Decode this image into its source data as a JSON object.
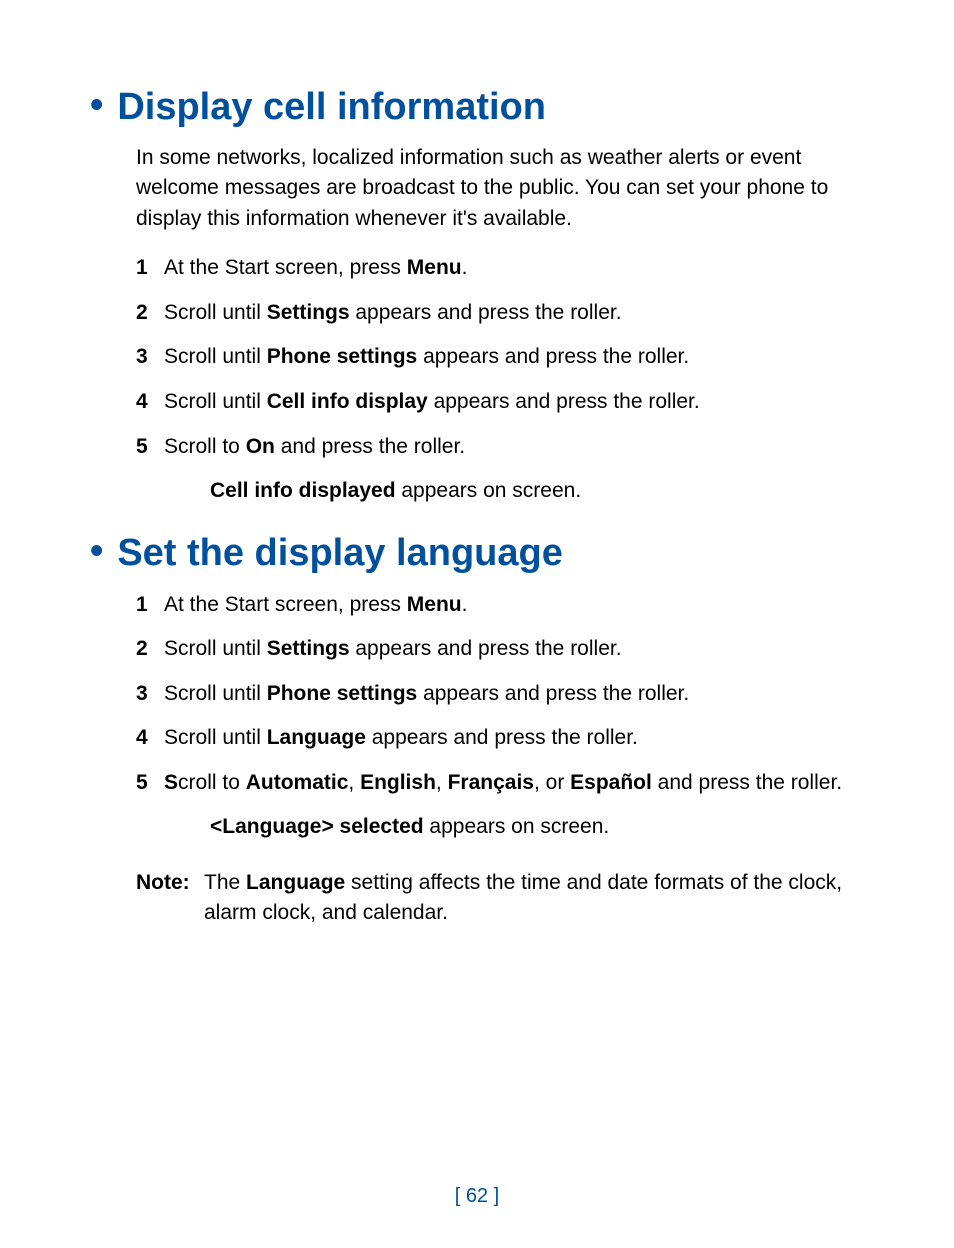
{
  "colors": {
    "heading": "#00509e",
    "body": "#000000",
    "background": "#ffffff"
  },
  "typography": {
    "heading_fontsize": 38,
    "body_fontsize": 21,
    "heading_weight": 700
  },
  "page_number": "[ 62 ]",
  "section1": {
    "title": "Display cell information",
    "intro": "In some networks, localized information such as weather alerts or event welcome messages are broadcast to the public. You can set your phone to display this information whenever it's available.",
    "steps": [
      {
        "num": "1",
        "pre": "At the Start screen, press ",
        "bold": "Menu",
        "post": "."
      },
      {
        "num": "2",
        "pre": "Scroll until ",
        "bold": "Settings",
        "post": " appears and press the roller."
      },
      {
        "num": "3",
        "pre": "Scroll until ",
        "bold": "Phone settings",
        "post": " appears and press the roller."
      },
      {
        "num": "4",
        "pre": "Scroll until ",
        "bold": "Cell info display",
        "post": " appears and press the roller."
      },
      {
        "num": "5",
        "pre": "Scroll to ",
        "bold": "On",
        "post": " and press the roller."
      }
    ],
    "followup_bold": "Cell info displayed",
    "followup_post": " appears on screen."
  },
  "section2": {
    "title": "Set the display language",
    "steps": [
      {
        "num": "1",
        "pre": "At the Start screen, press ",
        "bold": "Menu",
        "post": "."
      },
      {
        "num": "2",
        "pre": "Scroll until ",
        "bold": "Settings",
        "post": " appears and press the roller."
      },
      {
        "num": "3",
        "pre": "Scroll until ",
        "bold": "Phone settings",
        "post": " appears and press the roller."
      },
      {
        "num": "4",
        "pre": "Scroll until ",
        "bold": "Language",
        "post": " appears and press the roller."
      }
    ],
    "step5": {
      "num": "5",
      "s_bold": "S",
      "t1": "croll to ",
      "b1": "Automatic",
      "t2": ", ",
      "b2": "English",
      "t3": ", ",
      "b3": "Français",
      "t4": ", or ",
      "b4": "Español",
      "t5": " and press the roller."
    },
    "followup_bold": "<Language> selected",
    "followup_post": " appears on screen.",
    "note": {
      "label": "Note:",
      "t1": "The ",
      "b1": "Language",
      "t2": " setting affects the time and date formats of the clock, alarm clock, and calendar."
    }
  }
}
